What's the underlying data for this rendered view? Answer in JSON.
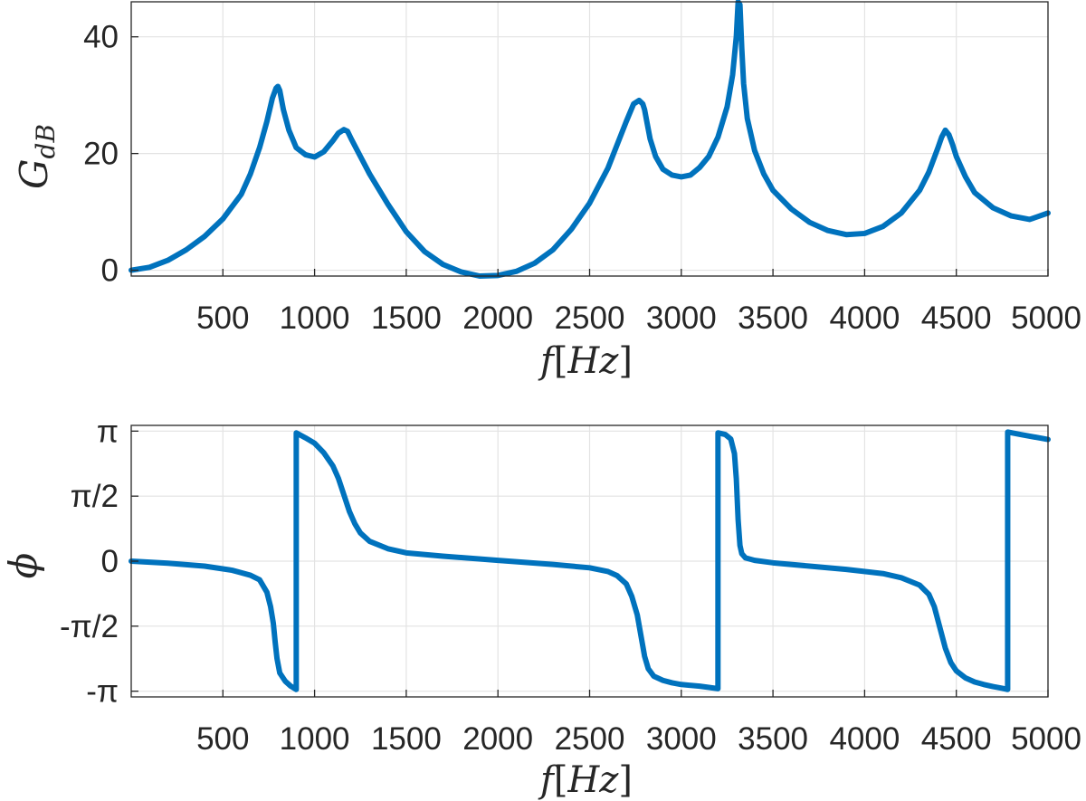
{
  "chart_data": [
    {
      "type": "line",
      "xlabel": {
        "main": "f",
        "bracket_open": "[",
        "unit": "Hz",
        "bracket_close": "]"
      },
      "ylabel": {
        "main": "G",
        "sub": "dB"
      },
      "xlim": [
        0,
        5000
      ],
      "ylim": [
        -1,
        46
      ],
      "xticks": [
        500,
        1000,
        1500,
        2000,
        2500,
        3000,
        3500,
        4000,
        4500,
        5000
      ],
      "yticks": [
        0,
        20,
        40
      ],
      "ytick_labels": [
        "0",
        "20",
        "40"
      ],
      "grid": true,
      "color": "#0072BD",
      "series": [
        {
          "x": [
            0,
            100,
            200,
            300,
            400,
            500,
            600,
            650,
            700,
            740,
            770,
            790,
            800,
            810,
            830,
            860,
            900,
            950,
            1000,
            1050,
            1100,
            1130,
            1160,
            1180,
            1200,
            1250,
            1300,
            1400,
            1500,
            1600,
            1700,
            1800,
            1900,
            2000,
            2100,
            2200,
            2300,
            2400,
            2500,
            2600,
            2650,
            2700,
            2740,
            2770,
            2790,
            2800,
            2810,
            2830,
            2860,
            2900,
            2950,
            3000,
            3050,
            3100,
            3150,
            3200,
            3250,
            3280,
            3300,
            3310,
            3320,
            3330,
            3340,
            3360,
            3400,
            3450,
            3500,
            3600,
            3700,
            3800,
            3900,
            4000,
            4100,
            4200,
            4300,
            4350,
            4400,
            4420,
            4440,
            4460,
            4480,
            4500,
            4550,
            4600,
            4700,
            4800,
            4900,
            5000
          ],
          "y": [
            0,
            0.5,
            1.7,
            3.5,
            5.8,
            8.8,
            13,
            16.5,
            21,
            25.5,
            29.5,
            31.2,
            31.5,
            30.8,
            27.5,
            24,
            21,
            19.8,
            19.4,
            20.3,
            22.2,
            23.5,
            24.1,
            23.8,
            22.5,
            19.5,
            16.5,
            11.3,
            6.6,
            3.2,
            1.0,
            -0.3,
            -1.0,
            -0.9,
            -0.2,
            1.2,
            3.5,
            7.0,
            11.5,
            17.5,
            21.5,
            25.5,
            28.5,
            29.1,
            28.5,
            27.5,
            25.8,
            22.5,
            19.5,
            17.3,
            16.3,
            16.0,
            16.3,
            17.6,
            19.5,
            22.8,
            28,
            33.5,
            40,
            46,
            45.5,
            38,
            32,
            26,
            20.5,
            16.5,
            13.7,
            10.5,
            8.2,
            6.8,
            6.1,
            6.3,
            7.5,
            9.8,
            13.7,
            16.8,
            21,
            22.8,
            24.0,
            23.2,
            21.5,
            19.5,
            16,
            13.3,
            10.7,
            9.3,
            8.7,
            9.8
          ]
        }
      ]
    },
    {
      "type": "line",
      "xlabel": {
        "main": "f",
        "bracket_open": "[",
        "unit": "Hz",
        "bracket_close": "]"
      },
      "ylabel": {
        "main": "ϕ"
      },
      "xlim": [
        0,
        5000
      ],
      "ylim": [
        -3.28,
        3.28
      ],
      "xticks": [
        500,
        1000,
        1500,
        2000,
        2500,
        3000,
        3500,
        4000,
        4500,
        5000
      ],
      "yticks": [
        -3.1416,
        -1.5708,
        0,
        1.5708,
        3.1416
      ],
      "ytick_labels": [
        "-π",
        "-π/2",
        "0",
        "π/2",
        "π"
      ],
      "grid": true,
      "color": "#0072BD",
      "series": [
        {
          "x": [
            0,
            200,
            400,
            550,
            650,
            700,
            740,
            760,
            775,
            785,
            795,
            810,
            840,
            870,
            900,
            900.1,
            950,
            1000,
            1050,
            1100,
            1130,
            1160,
            1190,
            1220,
            1250,
            1300,
            1400,
            1500,
            1700,
            2000,
            2300,
            2500,
            2600,
            2650,
            2700,
            2730,
            2760,
            2780,
            2800,
            2820,
            2850,
            2900,
            2950,
            3000,
            3100,
            3200,
            3200.1,
            3240,
            3270,
            3290,
            3300,
            3310,
            3320,
            3330,
            3350,
            3400,
            3500,
            3700,
            3900,
            4100,
            4200,
            4300,
            4350,
            4380,
            4410,
            4440,
            4470,
            4500,
            4550,
            4600,
            4650,
            4700,
            4750,
            4780,
            4780.1,
            4850,
            4950,
            5000
          ],
          "y": [
            0,
            -0.05,
            -0.12,
            -0.22,
            -0.34,
            -0.45,
            -0.75,
            -1.1,
            -1.5,
            -1.95,
            -2.35,
            -2.7,
            -2.9,
            -3.02,
            -3.1,
            3.1,
            2.98,
            2.85,
            2.62,
            2.3,
            2.0,
            1.6,
            1.2,
            0.9,
            0.68,
            0.48,
            0.3,
            0.2,
            0.12,
            0.02,
            -0.08,
            -0.16,
            -0.25,
            -0.35,
            -0.55,
            -0.85,
            -1.3,
            -1.8,
            -2.3,
            -2.6,
            -2.78,
            -2.88,
            -2.94,
            -2.98,
            -3.02,
            -3.08,
            3.1,
            3.06,
            2.95,
            2.6,
            2.0,
            1.0,
            0.38,
            0.18,
            0.08,
            0.02,
            -0.04,
            -0.12,
            -0.2,
            -0.3,
            -0.4,
            -0.58,
            -0.8,
            -1.1,
            -1.6,
            -2.1,
            -2.45,
            -2.65,
            -2.82,
            -2.92,
            -2.98,
            -3.03,
            -3.07,
            -3.1,
            3.12,
            3.06,
            2.98,
            2.94
          ]
        }
      ]
    }
  ]
}
